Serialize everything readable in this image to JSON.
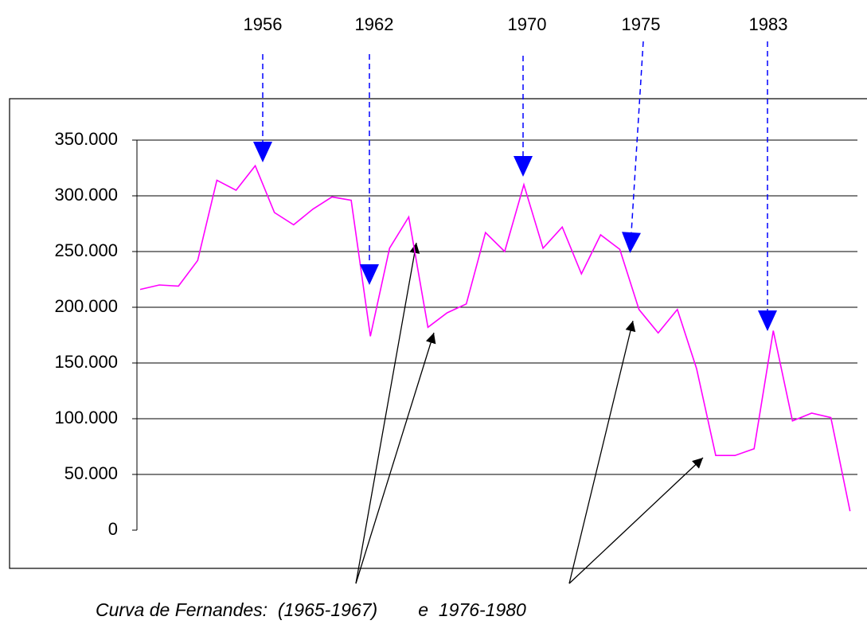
{
  "chart_data": {
    "type": "line",
    "annotations": [
      "1956",
      "1962",
      "1970",
      "1975",
      "1983"
    ],
    "caption": "Curva de Fernandes:  (1965-1967)        e  1976-1980",
    "series": [
      {
        "color": "#ff00ff",
        "values": [
          216000,
          220000,
          219000,
          242000,
          314000,
          305000,
          327000,
          285000,
          274000,
          288000,
          299000,
          296000,
          174000,
          253000,
          281000,
          182000,
          195000,
          203000,
          267000,
          250000,
          310000,
          253000,
          272000,
          230000,
          265000,
          252000,
          198000,
          177000,
          198000,
          145000,
          67000,
          67000,
          73000,
          179000,
          98000,
          105000,
          101000,
          17000
        ]
      }
    ],
    "ylim": [
      0,
      350000
    ],
    "yticks": [
      0,
      {
        "value": 50000,
        "label": "50.000"
      },
      {
        "value": 100000,
        "label": "100.000"
      },
      {
        "value": 150000,
        "label": "150.000"
      },
      {
        "value": 200000,
        "label": "200.000"
      },
      {
        "value": 250000,
        "label": "250.000"
      },
      {
        "value": 300000,
        "label": "300.000"
      },
      {
        "value": 350000,
        "label": "350.000"
      }
    ],
    "grid": true
  }
}
